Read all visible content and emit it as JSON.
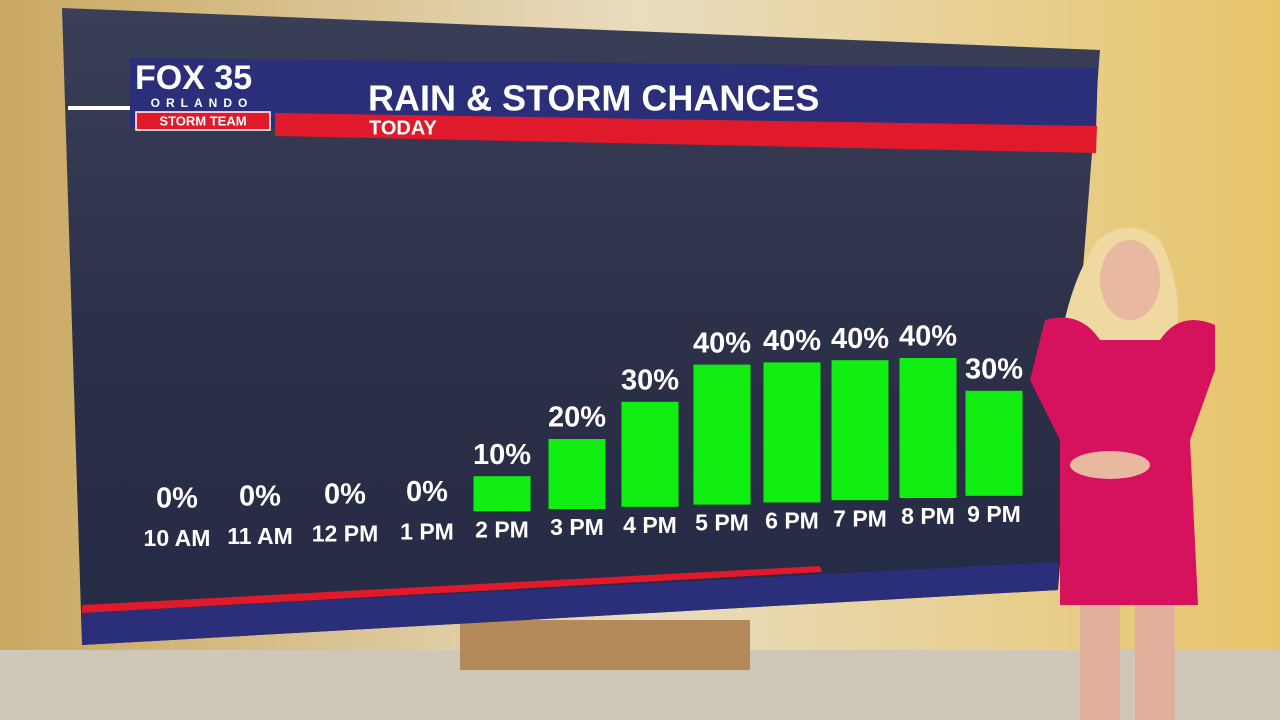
{
  "logo": {
    "brand": "FOX 35",
    "city": "ORLANDO",
    "team": "STORM TEAM"
  },
  "chart_data": {
    "type": "bar",
    "title": "RAIN & STORM CHANCES",
    "subtitle": "TODAY",
    "categories": [
      "10 AM",
      "11 AM",
      "12 PM",
      "1 PM",
      "2 PM",
      "3 PM",
      "4 PM",
      "5 PM",
      "6 PM",
      "7 PM",
      "8 PM",
      "9 PM"
    ],
    "values": [
      0,
      0,
      0,
      0,
      10,
      20,
      30,
      40,
      40,
      40,
      40,
      30
    ],
    "value_labels": [
      "0%",
      "0%",
      "0%",
      "0%",
      "10%",
      "20%",
      "30%",
      "40%",
      "40%",
      "40%",
      "40%",
      "30%"
    ],
    "color": "#11ee11"
  }
}
